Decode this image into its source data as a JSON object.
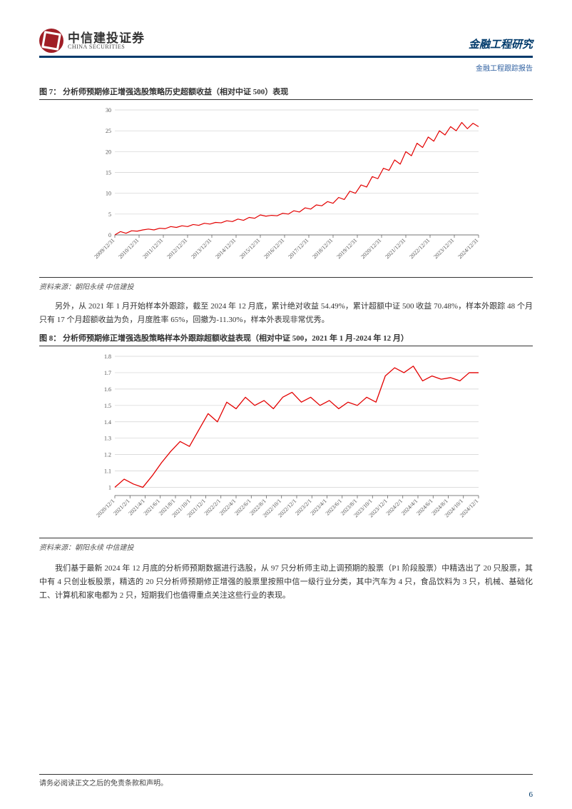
{
  "header": {
    "logo_cn": "中信建投证券",
    "logo_en": "CHINA SECURITIES",
    "category": "金融工程研究",
    "subcategory": "金融工程跟踪报告"
  },
  "figure7": {
    "label_prefix": "图 7：",
    "title": "分析师预期修正增强选股策略历史超额收益（相对中证 500）表现",
    "source": "资料来源：朝阳永续 中信建投",
    "type": "line",
    "line_color": "#e30000",
    "line_width": 1.2,
    "grid_color": "#d0d0d0",
    "axis_color": "#555555",
    "tick_fontsize": 8,
    "ylim": [
      0,
      30
    ],
    "ytick_step": 5,
    "yticks": [
      0,
      5,
      10,
      15,
      20,
      25,
      30
    ],
    "xlabels": [
      "2009/12/31",
      "2010/12/31",
      "2011/12/31",
      "2012/12/31",
      "2013/12/31",
      "2014/12/31",
      "2015/12/31",
      "2016/12/31",
      "2017/12/31",
      "2018/12/31",
      "2019/12/31",
      "2020/12/31",
      "2021/12/31",
      "2022/12/31",
      "2023/12/31",
      "2024/12/31"
    ],
    "series": [
      {
        "x": 0,
        "y": 0.0
      },
      {
        "x": 2,
        "y": 0.8
      },
      {
        "x": 4,
        "y": 0.4
      },
      {
        "x": 6,
        "y": 1.0
      },
      {
        "x": 8,
        "y": 0.9
      },
      {
        "x": 10,
        "y": 1.2
      },
      {
        "x": 12,
        "y": 1.4
      },
      {
        "x": 14,
        "y": 1.2
      },
      {
        "x": 16,
        "y": 1.6
      },
      {
        "x": 18,
        "y": 1.5
      },
      {
        "x": 20,
        "y": 2.0
      },
      {
        "x": 22,
        "y": 1.8
      },
      {
        "x": 24,
        "y": 2.2
      },
      {
        "x": 26,
        "y": 2.0
      },
      {
        "x": 28,
        "y": 2.5
      },
      {
        "x": 30,
        "y": 2.3
      },
      {
        "x": 32,
        "y": 2.8
      },
      {
        "x": 34,
        "y": 2.6
      },
      {
        "x": 36,
        "y": 3.0
      },
      {
        "x": 38,
        "y": 2.9
      },
      {
        "x": 40,
        "y": 3.4
      },
      {
        "x": 42,
        "y": 3.2
      },
      {
        "x": 44,
        "y": 3.8
      },
      {
        "x": 46,
        "y": 3.5
      },
      {
        "x": 48,
        "y": 4.2
      },
      {
        "x": 50,
        "y": 4.0
      },
      {
        "x": 52,
        "y": 4.8
      },
      {
        "x": 54,
        "y": 4.5
      },
      {
        "x": 56,
        "y": 4.7
      },
      {
        "x": 58,
        "y": 4.6
      },
      {
        "x": 60,
        "y": 5.2
      },
      {
        "x": 62,
        "y": 5.0
      },
      {
        "x": 64,
        "y": 5.8
      },
      {
        "x": 66,
        "y": 5.5
      },
      {
        "x": 68,
        "y": 6.5
      },
      {
        "x": 70,
        "y": 6.2
      },
      {
        "x": 72,
        "y": 7.2
      },
      {
        "x": 74,
        "y": 7.0
      },
      {
        "x": 76,
        "y": 8.0
      },
      {
        "x": 78,
        "y": 7.6
      },
      {
        "x": 80,
        "y": 9.0
      },
      {
        "x": 82,
        "y": 8.5
      },
      {
        "x": 84,
        "y": 10.5
      },
      {
        "x": 86,
        "y": 10.0
      },
      {
        "x": 88,
        "y": 12.0
      },
      {
        "x": 90,
        "y": 11.5
      },
      {
        "x": 92,
        "y": 14.0
      },
      {
        "x": 94,
        "y": 13.5
      },
      {
        "x": 96,
        "y": 16.0
      },
      {
        "x": 98,
        "y": 15.5
      },
      {
        "x": 100,
        "y": 18.0
      },
      {
        "x": 102,
        "y": 17.0
      },
      {
        "x": 104,
        "y": 20.0
      },
      {
        "x": 106,
        "y": 19.0
      },
      {
        "x": 108,
        "y": 22.0
      },
      {
        "x": 110,
        "y": 21.0
      },
      {
        "x": 112,
        "y": 23.5
      },
      {
        "x": 114,
        "y": 22.5
      },
      {
        "x": 116,
        "y": 25.0
      },
      {
        "x": 118,
        "y": 24.0
      },
      {
        "x": 120,
        "y": 26.0
      },
      {
        "x": 122,
        "y": 25.0
      },
      {
        "x": 124,
        "y": 27.0
      },
      {
        "x": 126,
        "y": 25.5
      },
      {
        "x": 128,
        "y": 26.8
      },
      {
        "x": 130,
        "y": 26.0
      }
    ],
    "x_domain": [
      0,
      130
    ]
  },
  "para1": "另外，从 2021 年 1 月开始样本外跟踪，截至 2024 年 12 月底，累计绝对收益 54.49%，累计超额中证 500 收益 70.48%，样本外跟踪 48 个月只有 17 个月超额收益为负，月度胜率 65%，回撤为-11.30%，样本外表现非常优秀。",
  "figure8": {
    "label_prefix": "图 8：",
    "title": "分析师预期修正增强选股策略样本外跟踪超额收益表现（相对中证 500，2021 年 1 月-2024 年 12 月）",
    "source": "资料来源：朝阳永续 中信建投",
    "type": "line",
    "line_color": "#e30000",
    "line_width": 1.3,
    "grid_color": "#d0d0d0",
    "axis_color": "#555555",
    "tick_fontsize": 8,
    "ylim": [
      0.95,
      1.8
    ],
    "yticks": [
      1,
      1.1,
      1.2,
      1.3,
      1.4,
      1.5,
      1.6,
      1.7,
      1.8
    ],
    "xlabels": [
      "2020/12/1",
      "2021/2/1",
      "2021/4/1",
      "2021/6/1",
      "2021/8/1",
      "2021/10/1",
      "2021/12/1",
      "2022/2/1",
      "2022/4/1",
      "2022/6/1",
      "2022/8/1",
      "2022/10/1",
      "2022/12/1",
      "2023/2/1",
      "2023/4/1",
      "2023/6/1",
      "2023/8/1",
      "2023/10/1",
      "2023/12/1",
      "2024/2/1",
      "2024/4/1",
      "2024/6/1",
      "2024/8/1",
      "2024/10/1",
      "2024/12/1"
    ],
    "series": [
      {
        "x": 0,
        "y": 1.0
      },
      {
        "x": 1,
        "y": 1.05
      },
      {
        "x": 2,
        "y": 1.02
      },
      {
        "x": 3,
        "y": 1.0
      },
      {
        "x": 4,
        "y": 1.07
      },
      {
        "x": 5,
        "y": 1.15
      },
      {
        "x": 6,
        "y": 1.22
      },
      {
        "x": 7,
        "y": 1.28
      },
      {
        "x": 8,
        "y": 1.25
      },
      {
        "x": 9,
        "y": 1.35
      },
      {
        "x": 10,
        "y": 1.45
      },
      {
        "x": 11,
        "y": 1.4
      },
      {
        "x": 12,
        "y": 1.52
      },
      {
        "x": 13,
        "y": 1.48
      },
      {
        "x": 14,
        "y": 1.55
      },
      {
        "x": 15,
        "y": 1.5
      },
      {
        "x": 16,
        "y": 1.53
      },
      {
        "x": 17,
        "y": 1.48
      },
      {
        "x": 18,
        "y": 1.55
      },
      {
        "x": 19,
        "y": 1.58
      },
      {
        "x": 20,
        "y": 1.52
      },
      {
        "x": 21,
        "y": 1.55
      },
      {
        "x": 22,
        "y": 1.5
      },
      {
        "x": 23,
        "y": 1.53
      },
      {
        "x": 24,
        "y": 1.48
      },
      {
        "x": 25,
        "y": 1.52
      },
      {
        "x": 26,
        "y": 1.5
      },
      {
        "x": 27,
        "y": 1.55
      },
      {
        "x": 28,
        "y": 1.52
      },
      {
        "x": 29,
        "y": 1.68
      },
      {
        "x": 30,
        "y": 1.73
      },
      {
        "x": 31,
        "y": 1.7
      },
      {
        "x": 32,
        "y": 1.74
      },
      {
        "x": 33,
        "y": 1.65
      },
      {
        "x": 34,
        "y": 1.68
      },
      {
        "x": 35,
        "y": 1.66
      },
      {
        "x": 36,
        "y": 1.67
      },
      {
        "x": 37,
        "y": 1.65
      },
      {
        "x": 38,
        "y": 1.7
      },
      {
        "x": 39,
        "y": 1.7
      }
    ],
    "x_domain": [
      0,
      39
    ]
  },
  "para2": "我们基于最新 2024 年 12 月底的分析师预期数据进行选股，从 97 只分析师主动上调预期的股票（P1 阶段股票）中精选出了 20 只股票，其中有 4 只创业板股票，精选的 20 只分析师预期修正增强的股票里按照中信一级行业分类，其中汽车为 4 只，食品饮料为 3 只，机械、基础化工、计算机和家电都为 2 只，短期我们也值得重点关注这些行业的表现。",
  "footer": {
    "disclaimer": "请务必阅读正文之后的免责条款和声明。",
    "page": "6"
  }
}
